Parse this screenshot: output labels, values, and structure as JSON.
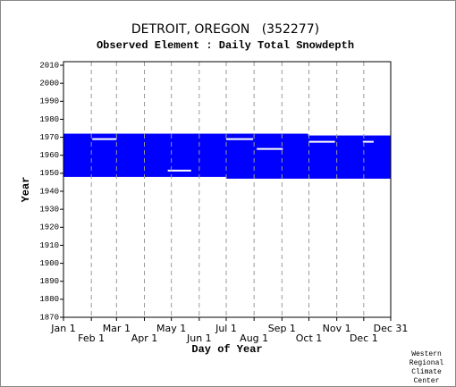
{
  "chart_data": {
    "type": "coverage",
    "title": "DETROIT, OREGON   (352277)",
    "subtitle": "Observed Element : Daily Total Snowdepth",
    "x_label": "Day of Year",
    "y_label": "Year",
    "credit": [
      "Western",
      "Regional",
      "Climate",
      "Center"
    ],
    "color": "#0000ff",
    "xlim": [
      1,
      365
    ],
    "xticks": [
      {
        "value": 1,
        "label": "Jan 1"
      },
      {
        "value": 32,
        "label": "Feb 1"
      },
      {
        "value": 60,
        "label": "Mar 1"
      },
      {
        "value": 91,
        "label": "Apr 1"
      },
      {
        "value": 121,
        "label": "May 1"
      },
      {
        "value": 152,
        "label": "Jun 1"
      },
      {
        "value": 182,
        "label": "Jul 1"
      },
      {
        "value": 213,
        "label": "Aug 1"
      },
      {
        "value": 244,
        "label": "Sep 1"
      },
      {
        "value": 274,
        "label": "Oct 1"
      },
      {
        "value": 305,
        "label": "Nov 1"
      },
      {
        "value": 335,
        "label": "Dec 1"
      },
      {
        "value": 365,
        "label": "Dec 31"
      }
    ],
    "ylim": [
      1870,
      2012
    ],
    "yticks": [
      1870,
      1880,
      1890,
      1900,
      1910,
      1920,
      1930,
      1940,
      1950,
      1960,
      1970,
      1980,
      1990,
      2000,
      2010
    ],
    "grid": true,
    "blocks": [
      {
        "start": 1,
        "end": 182,
        "from": 1948,
        "to": 1972
      },
      {
        "start": 182,
        "end": 273,
        "from": 1947,
        "to": 1972
      },
      {
        "start": 273,
        "end": 365,
        "from": 1947,
        "to": 1971
      }
    ],
    "gaps": [
      {
        "start": 33,
        "end": 60,
        "year": 1969
      },
      {
        "start": 117,
        "end": 143,
        "year": 1951.5
      },
      {
        "start": 182,
        "end": 212,
        "year": 1969
      },
      {
        "start": 216,
        "end": 245,
        "year": 1963.5
      },
      {
        "start": 274,
        "end": 303,
        "year": 1967.5
      },
      {
        "start": 334,
        "end": 346,
        "year": 1967.5
      }
    ]
  }
}
